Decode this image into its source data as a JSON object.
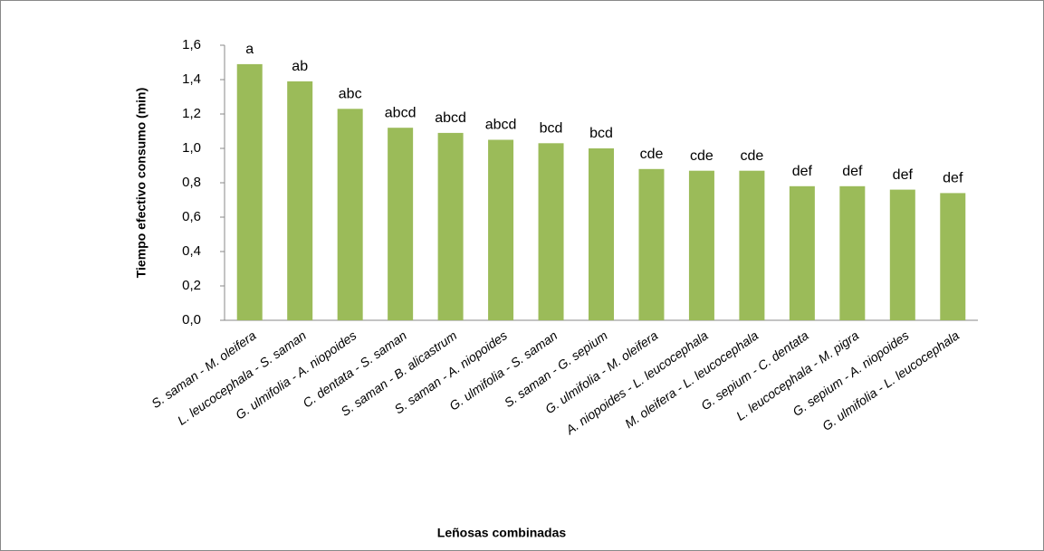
{
  "chart_data": {
    "type": "bar",
    "categories": [
      "S. saman - M. oleifera",
      "L. leucocephala - S. saman",
      "G. ulmifolia - A. niopoides",
      "C. dentata - S. saman",
      "S. saman - B. alicastrum",
      "S. saman - A. niopoides",
      "G. ulmifolia - S. saman",
      "S. saman - G. sepium",
      "G. ulmifolia - M. oleifera",
      "A. niopoides - L. leucocephala",
      "M. oleifera - L. leucocephala",
      "G. sepium - C. dentata",
      "L. leucocephala - M. pigra",
      "G. sepium - A. niopoides",
      "G. ulmifolia - L. leucocephala"
    ],
    "values": [
      1.49,
      1.39,
      1.23,
      1.12,
      1.09,
      1.05,
      1.03,
      1.0,
      0.88,
      0.87,
      0.87,
      0.78,
      0.78,
      0.76,
      0.74
    ],
    "annotations": [
      "a",
      "ab",
      "abc",
      "abcd",
      "abcd",
      "abcd",
      "bcd",
      "bcd",
      "cde",
      "cde",
      "cde",
      "def",
      "def",
      "def",
      "def"
    ],
    "color": "#9bbb59",
    "xlabel": "Leñosas combinadas",
    "ylabel": "Tiempo efectivo consumo (min)",
    "ylim": [
      0,
      1.6
    ],
    "yticks": [
      {
        "value": 0,
        "label": "0,0"
      },
      {
        "value": 0.2,
        "label": "0,2"
      },
      {
        "value": 0.4,
        "label": "0,4"
      },
      {
        "value": 0.6,
        "label": "0,6"
      },
      {
        "value": 0.8,
        "label": "0,8"
      },
      {
        "value": 1.0,
        "label": "1,0"
      },
      {
        "value": 1.2,
        "label": "1,2"
      },
      {
        "value": 1.4,
        "label": "1,4"
      },
      {
        "value": 1.6,
        "label": "1,6"
      }
    ],
    "grid": false
  }
}
